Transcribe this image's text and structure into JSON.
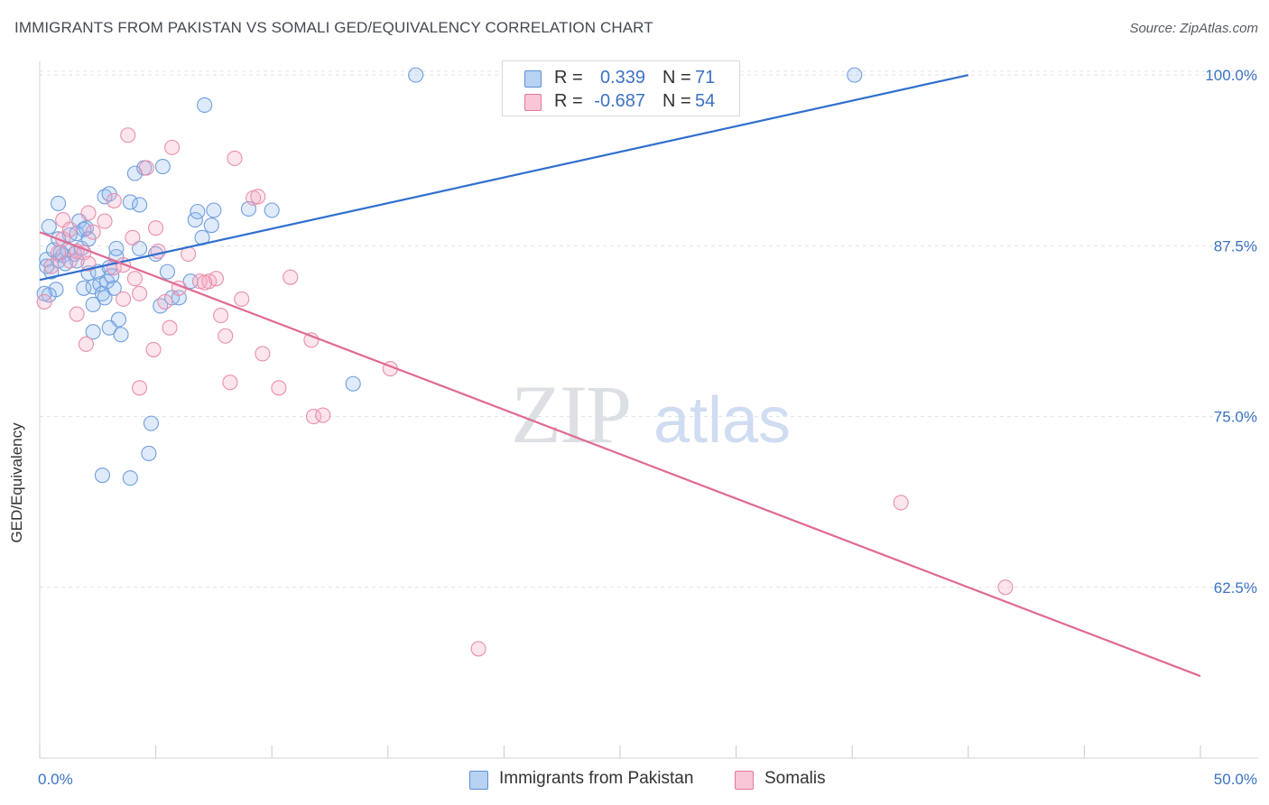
{
  "header": {
    "title": "IMMIGRANTS FROM PAKISTAN VS SOMALI GED/EQUIVALENCY CORRELATION CHART",
    "source": "Source: ZipAtlas.com"
  },
  "watermark": {
    "zip": "ZIP",
    "atlas": "atlas"
  },
  "legend": {
    "r_label": "R =",
    "n_label": "N =",
    "rows": [
      {
        "r": "0.339",
        "n": "71",
        "color": "#5b8fd6",
        "fill": "#b8d2f4"
      },
      {
        "r": "-0.687",
        "n": "54",
        "color": "#e27799",
        "fill": "#f8c6d6"
      }
    ]
  },
  "bottom_legend": {
    "items": [
      {
        "label": "Immigrants from Pakistan"
      },
      {
        "label": "Somalis"
      }
    ]
  },
  "colors": {
    "blue_line": "#2f6fce",
    "pink_line": "#e06a93",
    "blue_text": "#3b72c4",
    "grid": "#e1e4e8"
  },
  "chart_data": {
    "type": "scatter",
    "title": "IMMIGRANTS FROM PAKISTAN VS SOMALI GED/EQUIVALENCY CORRELATION CHART",
    "xlabel": "",
    "ylabel": "GED/Equivalency",
    "xlim": [
      0,
      50
    ],
    "ylim": [
      50,
      101
    ],
    "x_tick_labels": [
      "0.0%",
      "50.0%"
    ],
    "y_ticks": [
      62.5,
      75.0,
      87.5,
      100.0
    ],
    "y_tick_labels": [
      "62.5%",
      "75.0%",
      "87.5%",
      "100.0%"
    ],
    "grid": true,
    "legend_position": "top-center",
    "series": [
      {
        "name": "Immigrants from Pakistan",
        "r": 0.339,
        "n": 71,
        "trend": {
          "x": [
            0,
            40
          ],
          "y": [
            85.0,
            100.0
          ]
        },
        "points": [
          [
            0.3,
            86.5
          ],
          [
            0.5,
            85.6
          ],
          [
            0.7,
            84.3
          ],
          [
            0.4,
            83.9
          ],
          [
            0.8,
            86.4
          ],
          [
            0.6,
            87.2
          ],
          [
            1.0,
            86.8
          ],
          [
            1.3,
            88.3
          ],
          [
            0.4,
            88.9
          ],
          [
            0.8,
            88.0
          ],
          [
            1.2,
            87.2
          ],
          [
            1.5,
            86.9
          ],
          [
            1.6,
            88.4
          ],
          [
            1.8,
            87.3
          ],
          [
            1.7,
            89.3
          ],
          [
            2.0,
            88.8
          ],
          [
            1.9,
            88.7
          ],
          [
            2.1,
            88.0
          ],
          [
            1.6,
            86.4
          ],
          [
            2.1,
            85.5
          ],
          [
            1.9,
            84.4
          ],
          [
            2.3,
            84.5
          ],
          [
            2.6,
            84.7
          ],
          [
            2.7,
            84.0
          ],
          [
            2.5,
            85.6
          ],
          [
            2.9,
            84.9
          ],
          [
            3.0,
            85.9
          ],
          [
            3.1,
            85.3
          ],
          [
            2.8,
            83.7
          ],
          [
            2.3,
            83.2
          ],
          [
            3.3,
            86.7
          ],
          [
            3.3,
            87.3
          ],
          [
            3.4,
            82.1
          ],
          [
            3.0,
            81.5
          ],
          [
            2.3,
            81.2
          ],
          [
            3.5,
            81.0
          ],
          [
            3.2,
            84.4
          ],
          [
            4.3,
            87.3
          ],
          [
            4.1,
            92.8
          ],
          [
            4.5,
            93.2
          ],
          [
            3.9,
            90.7
          ],
          [
            4.3,
            90.5
          ],
          [
            2.8,
            91.1
          ],
          [
            3.0,
            91.3
          ],
          [
            0.8,
            90.6
          ],
          [
            5.0,
            86.9
          ],
          [
            5.5,
            85.6
          ],
          [
            5.7,
            83.7
          ],
          [
            6.0,
            83.7
          ],
          [
            6.5,
            84.9
          ],
          [
            6.7,
            89.4
          ],
          [
            6.8,
            90.0
          ],
          [
            7.0,
            88.1
          ],
          [
            7.4,
            89.0
          ],
          [
            7.5,
            90.1
          ],
          [
            9.0,
            90.2
          ],
          [
            10.0,
            90.1
          ],
          [
            7.1,
            97.8
          ],
          [
            5.3,
            93.3
          ],
          [
            5.2,
            83.1
          ],
          [
            4.8,
            74.5
          ],
          [
            4.7,
            72.3
          ],
          [
            2.7,
            70.7
          ],
          [
            3.9,
            70.5
          ],
          [
            13.5,
            77.4
          ],
          [
            16.2,
            100.0
          ],
          [
            35.1,
            100.0
          ],
          [
            0.2,
            84.0
          ],
          [
            0.3,
            86.0
          ],
          [
            1.1,
            86.2
          ],
          [
            0.9,
            87.0
          ]
        ]
      },
      {
        "name": "Somalis",
        "r": -0.687,
        "n": 54,
        "trend": {
          "x": [
            0,
            50
          ],
          "y": [
            88.5,
            56.0
          ]
        },
        "points": [
          [
            0.2,
            83.4
          ],
          [
            0.5,
            86.0
          ],
          [
            0.8,
            87.0
          ],
          [
            1.0,
            88.0
          ],
          [
            1.3,
            86.4
          ],
          [
            1.0,
            89.4
          ],
          [
            1.3,
            88.7
          ],
          [
            1.6,
            87.1
          ],
          [
            1.9,
            87.0
          ],
          [
            2.1,
            86.2
          ],
          [
            2.1,
            89.9
          ],
          [
            2.3,
            88.5
          ],
          [
            2.8,
            89.3
          ],
          [
            3.2,
            90.8
          ],
          [
            3.2,
            85.9
          ],
          [
            3.6,
            83.6
          ],
          [
            3.6,
            86.1
          ],
          [
            4.0,
            88.1
          ],
          [
            4.1,
            85.1
          ],
          [
            4.3,
            84.0
          ],
          [
            4.6,
            93.2
          ],
          [
            3.8,
            95.6
          ],
          [
            5.7,
            94.7
          ],
          [
            5.0,
            88.8
          ],
          [
            5.1,
            87.1
          ],
          [
            5.4,
            83.4
          ],
          [
            5.6,
            81.5
          ],
          [
            6.0,
            84.4
          ],
          [
            6.4,
            86.9
          ],
          [
            6.9,
            84.9
          ],
          [
            7.3,
            84.9
          ],
          [
            7.6,
            85.1
          ],
          [
            7.8,
            82.4
          ],
          [
            8.0,
            80.9
          ],
          [
            8.2,
            77.5
          ],
          [
            8.4,
            93.9
          ],
          [
            8.7,
            83.6
          ],
          [
            9.2,
            91.0
          ],
          [
            9.4,
            91.1
          ],
          [
            9.6,
            79.6
          ],
          [
            10.3,
            77.1
          ],
          [
            10.8,
            85.2
          ],
          [
            11.7,
            80.6
          ],
          [
            11.8,
            75.0
          ],
          [
            12.2,
            75.1
          ],
          [
            15.1,
            78.5
          ],
          [
            7.1,
            84.8
          ],
          [
            2.0,
            80.3
          ],
          [
            1.6,
            82.5
          ],
          [
            4.3,
            77.1
          ],
          [
            4.9,
            79.9
          ],
          [
            18.9,
            58.0
          ],
          [
            37.1,
            68.7
          ],
          [
            41.6,
            62.5
          ]
        ]
      }
    ]
  }
}
